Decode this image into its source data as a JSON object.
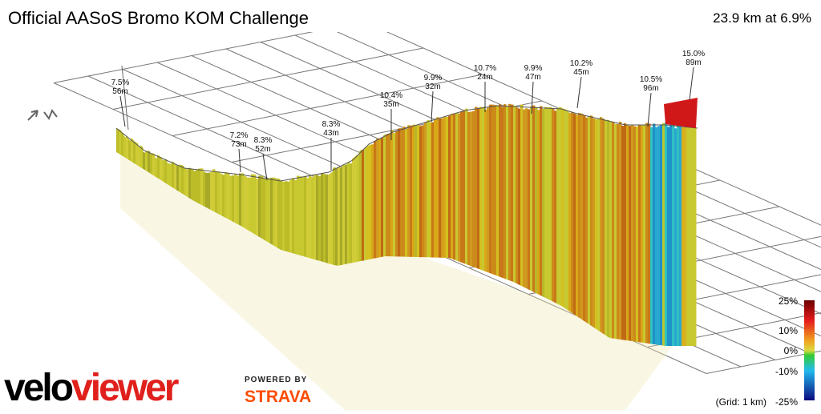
{
  "header": {
    "title": "Official AASoS Bromo KOM Challenge",
    "summary": "23.9 km at 6.9%"
  },
  "annotations": [
    {
      "grade": "7.5%",
      "length": "56m"
    },
    {
      "grade": "7.2%",
      "length": "73m"
    },
    {
      "grade": "8.3%",
      "length": "52m"
    },
    {
      "grade": "8.3%",
      "length": "43m"
    },
    {
      "grade": "10.4%",
      "length": "35m"
    },
    {
      "grade": "9.9%",
      "length": "32m"
    },
    {
      "grade": "10.7%",
      "length": "24m"
    },
    {
      "grade": "9.9%",
      "length": "47m"
    },
    {
      "grade": "10.2%",
      "length": "45m"
    },
    {
      "grade": "10.5%",
      "length": "96m"
    },
    {
      "grade": "15.0%",
      "length": "89m"
    }
  ],
  "legend": {
    "labels": [
      "25%",
      "10%",
      "0%",
      "-10%"
    ],
    "grid_note": "(Grid: 1 km)",
    "min_label": "-25%"
  },
  "branding": {
    "logo_left": "velo",
    "logo_right": "viewer",
    "powered_by": "POWERED BY",
    "partner": "STRAVA"
  }
}
